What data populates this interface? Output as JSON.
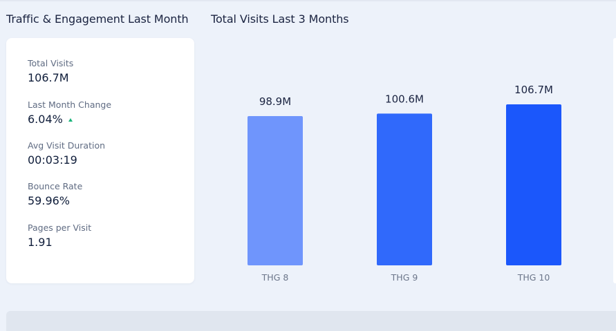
{
  "sections": {
    "left_title": "Traffic & Engagement Last Month",
    "right_title": "Total Visits Last 3 Months"
  },
  "stats": [
    {
      "label": "Total Visits",
      "value": "106.7M"
    },
    {
      "label": "Last Month Change",
      "value": "6.04%",
      "trend": "up"
    },
    {
      "label": "Avg Visit Duration",
      "value": "00:03:19"
    },
    {
      "label": "Bounce Rate",
      "value": "59.96%"
    },
    {
      "label": "Pages per Visit",
      "value": "1.91"
    }
  ],
  "colors": {
    "trend_up": "#19b47a",
    "bars": [
      "#6f95fc",
      "#3069fb",
      "#1b57fb"
    ]
  },
  "chart_data": {
    "type": "bar",
    "title": "Total Visits Last 3 Months",
    "categories": [
      "THG 8",
      "THG 9",
      "THG 10"
    ],
    "values": [
      98.9,
      100.6,
      106.7
    ],
    "value_labels": [
      "98.9M",
      "100.6M",
      "106.7M"
    ],
    "unit": "M",
    "ylim": [
      0,
      106.7
    ],
    "grid": false,
    "legend": "none"
  }
}
